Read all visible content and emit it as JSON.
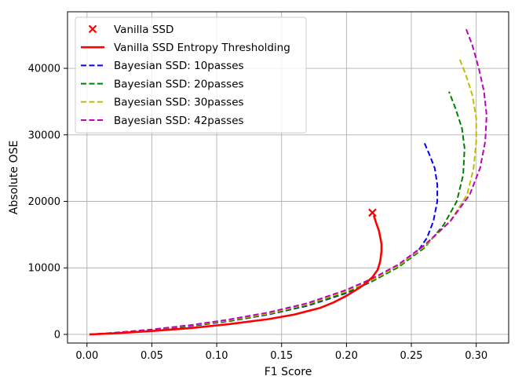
{
  "chart_data": {
    "type": "line",
    "xlabel": "F1 Score",
    "ylabel": "Absolute OSE",
    "xlim": [
      -0.015,
      0.325
    ],
    "ylim": [
      -1300,
      48500
    ],
    "xticks": [
      0.0,
      0.05,
      0.1,
      0.15,
      0.2,
      0.25,
      0.3
    ],
    "xtick_labels": [
      "0.00",
      "0.05",
      "0.10",
      "0.15",
      "0.20",
      "0.25",
      "0.30"
    ],
    "yticks": [
      0,
      10000,
      20000,
      30000,
      40000
    ],
    "ytick_labels": [
      "0",
      "10000",
      "20000",
      "30000",
      "40000"
    ],
    "grid": true,
    "legend_position": "top-left",
    "points": [
      {
        "name": "Vanilla SSD",
        "marker": "x",
        "color": "#ff0000",
        "x": 0.22,
        "y": 18300
      }
    ],
    "series": [
      {
        "name": "Vanilla SSD Entropy Thresholding",
        "color": "#ff0000",
        "style": "solid",
        "x": [
          0.002,
          0.02,
          0.05,
          0.08,
          0.11,
          0.14,
          0.16,
          0.18,
          0.19,
          0.2,
          0.21,
          0.215,
          0.22,
          0.224,
          0.226,
          0.227,
          0.227,
          0.226,
          0.225,
          0.223,
          0.221
        ],
        "y": [
          0,
          150,
          500,
          950,
          1550,
          2300,
          3000,
          4000,
          4800,
          5800,
          7000,
          7700,
          8600,
          9700,
          11000,
          12500,
          13600,
          14600,
          15600,
          16700,
          17900
        ]
      },
      {
        "name": "Bayesian SSD: 10passes",
        "color": "#0000ff",
        "style": "dashed",
        "x": [
          0.002,
          0.02,
          0.05,
          0.08,
          0.11,
          0.14,
          0.17,
          0.2,
          0.22,
          0.24,
          0.255,
          0.262,
          0.267,
          0.27,
          0.27,
          0.268,
          0.264,
          0.26
        ],
        "y": [
          0,
          200,
          650,
          1250,
          2000,
          3000,
          4300,
          6200,
          8000,
          10200,
          12500,
          14500,
          17000,
          20000,
          22500,
          25000,
          27000,
          28800
        ]
      },
      {
        "name": "Bayesian SSD: 20passes",
        "color": "#008000",
        "style": "dashed",
        "x": [
          0.002,
          0.02,
          0.05,
          0.08,
          0.11,
          0.14,
          0.17,
          0.2,
          0.22,
          0.24,
          0.26,
          0.275,
          0.285,
          0.29,
          0.291,
          0.289,
          0.284,
          0.279
        ],
        "y": [
          0,
          210,
          680,
          1300,
          2050,
          3050,
          4400,
          6300,
          8000,
          10100,
          13000,
          16500,
          20000,
          24000,
          28000,
          31000,
          34000,
          36500
        ]
      },
      {
        "name": "Bayesian SSD: 30passes",
        "color": "#bfbf00",
        "style": "dashed",
        "x": [
          0.002,
          0.02,
          0.05,
          0.08,
          0.11,
          0.14,
          0.17,
          0.2,
          0.22,
          0.24,
          0.26,
          0.28,
          0.293,
          0.298,
          0.3,
          0.3,
          0.297,
          0.292,
          0.287
        ],
        "y": [
          0,
          220,
          710,
          1350,
          2150,
          3150,
          4550,
          6500,
          8200,
          10300,
          13200,
          17000,
          21000,
          25000,
          29000,
          32500,
          36000,
          39000,
          41500
        ]
      },
      {
        "name": "Bayesian SSD: 42passes",
        "color": "#bf00bf",
        "style": "dashed",
        "x": [
          0.002,
          0.02,
          0.05,
          0.08,
          0.11,
          0.14,
          0.17,
          0.2,
          0.22,
          0.24,
          0.26,
          0.28,
          0.295,
          0.303,
          0.307,
          0.308,
          0.306,
          0.302,
          0.297,
          0.292
        ],
        "y": [
          0,
          230,
          740,
          1400,
          2250,
          3300,
          4700,
          6700,
          8400,
          10500,
          13400,
          17000,
          21000,
          25000,
          29000,
          33000,
          36500,
          40000,
          43500,
          46000
        ]
      }
    ]
  }
}
